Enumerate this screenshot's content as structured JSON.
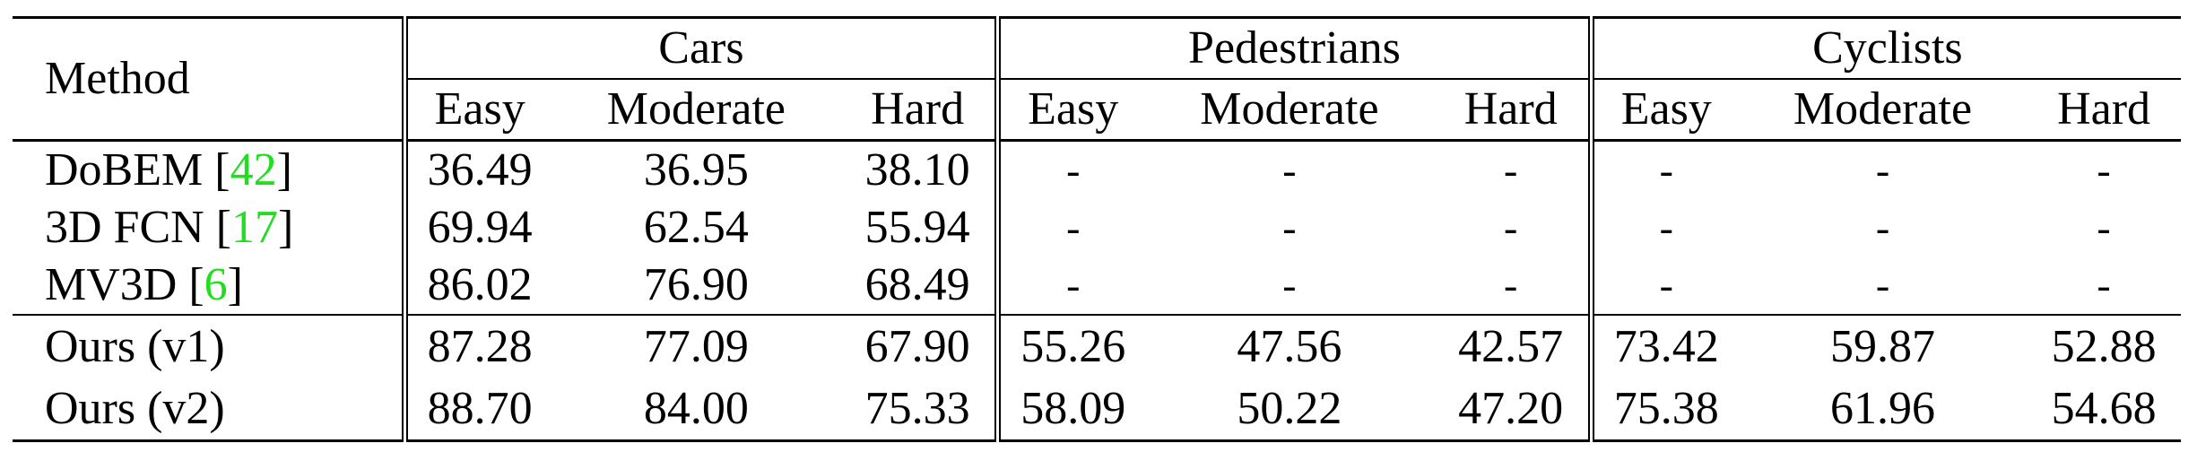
{
  "table": {
    "method_header": "Method",
    "groups": [
      "Cars",
      "Pedestrians",
      "Cyclists"
    ],
    "subheaders": [
      "Easy",
      "Moderate",
      "Hard"
    ],
    "rows": [
      {
        "method": "DoBEM [",
        "ref": "42",
        "close": "]",
        "values": [
          "36.49",
          "36.95",
          "38.10",
          "-",
          "-",
          "-",
          "-",
          "-",
          "-"
        ]
      },
      {
        "method": "3D FCN [",
        "ref": "17",
        "close": "]",
        "values": [
          "69.94",
          "62.54",
          "55.94",
          "-",
          "-",
          "-",
          "-",
          "-",
          "-"
        ]
      },
      {
        "method": "MV3D [",
        "ref": "6",
        "close": "]",
        "values": [
          "86.02",
          "76.90",
          "68.49",
          "-",
          "-",
          "-",
          "-",
          "-",
          "-"
        ]
      }
    ],
    "ours": [
      {
        "method": "Ours (v1)",
        "values": [
          "87.28",
          "77.09",
          "67.90",
          "55.26",
          "47.56",
          "42.57",
          "73.42",
          "59.87",
          "52.88"
        ]
      },
      {
        "method": "Ours (v2)",
        "values": [
          "88.70",
          "84.00",
          "75.33",
          "58.09",
          "50.22",
          "47.20",
          "75.38",
          "61.96",
          "54.68"
        ],
        "bold": true
      }
    ],
    "colors": {
      "ref": "#22dd22",
      "text": "#000000"
    }
  }
}
